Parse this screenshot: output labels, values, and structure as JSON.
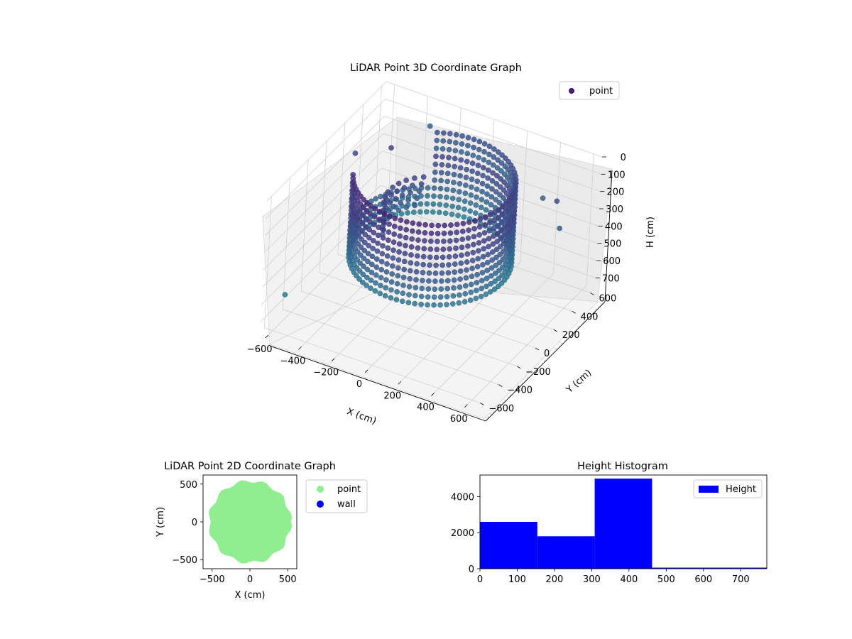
{
  "chart_data": [
    {
      "type": "scatter",
      "projection": "3d",
      "title": "LiDAR Point 3D Coordinate Graph",
      "xlabel": "X (cm)",
      "ylabel": "Y (cm)",
      "zlabel": "H (cm)",
      "xlim": [
        -650,
        650
      ],
      "ylim": [
        -650,
        650
      ],
      "zlim": [
        760,
        0
      ],
      "z_axis_inverted": true,
      "xticks": [
        -600,
        -400,
        -200,
        0,
        200,
        400,
        600
      ],
      "yticks": [
        -600,
        -400,
        -200,
        0,
        200,
        400,
        600
      ],
      "zticks": [
        0,
        100,
        200,
        300,
        400,
        500,
        600,
        700
      ],
      "colormap": "viridis",
      "grid": true,
      "legend": {
        "placement": "top-right",
        "entries": [
          {
            "label": "point",
            "color": "#46186e"
          }
        ]
      },
      "series": [
        {
          "name": "point",
          "ring": {
            "center_x": 0,
            "center_y": 0,
            "radius_cm": 430,
            "height_range": [
              0,
              460
            ]
          },
          "outliers": [
            [
              -560,
              -560,
              560
            ],
            [
              -600,
              240,
              180
            ],
            [
              -420,
              300,
              120
            ],
            [
              -300,
              500,
              60
            ],
            [
              500,
              450,
              200
            ],
            [
              560,
              380,
              300
            ],
            [
              380,
              520,
              260
            ]
          ]
        }
      ]
    },
    {
      "type": "scatter",
      "title": "LiDAR Point 2D Coordinate Graph",
      "xlabel": "X (cm)",
      "ylabel": "Y (cm)",
      "xlim": [
        -620,
        620
      ],
      "ylim": [
        -620,
        620
      ],
      "xticks": [
        -500,
        0,
        500
      ],
      "yticks": [
        -500,
        0,
        500
      ],
      "grid": false,
      "legend": {
        "placement": "outside-right",
        "entries": [
          {
            "label": "point",
            "color": "#90ee90"
          },
          {
            "label": "wall",
            "color": "#0000ff"
          }
        ]
      },
      "series": [
        {
          "name": "point",
          "color": "#90ee90",
          "shape": "disc",
          "center_x": 0,
          "center_y": 0,
          "radius_cm": 540
        },
        {
          "name": "wall",
          "color": "#0000ff",
          "points": []
        }
      ]
    },
    {
      "type": "bar",
      "title": "Height Histogram",
      "xlim": [
        0,
        770
      ],
      "ylim": [
        0,
        5200
      ],
      "xticks": [
        0,
        100,
        200,
        300,
        400,
        500,
        600,
        700
      ],
      "yticks": [
        0,
        2000,
        4000
      ],
      "grid": false,
      "legend": {
        "placement": "top-right",
        "entries": [
          {
            "label": "Height",
            "color": "#0000ff"
          }
        ]
      },
      "series": [
        {
          "name": "Height",
          "color": "#0000ff",
          "bins": [
            [
              0,
              154,
              2600
            ],
            [
              154,
              308,
              1800
            ],
            [
              308,
              462,
              5000
            ],
            [
              462,
              616,
              60
            ],
            [
              616,
              770,
              60
            ]
          ]
        }
      ]
    }
  ]
}
